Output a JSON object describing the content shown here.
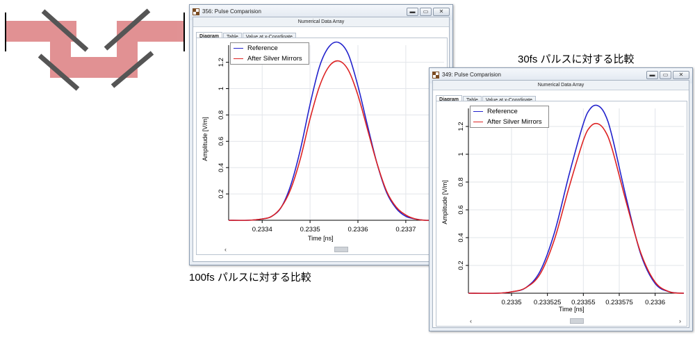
{
  "captions": {
    "left": "100fs パルスに対する比較",
    "right": "30fs パルスに対する比較"
  },
  "colors": {
    "reference": "#2222cc",
    "after": "#dd2222"
  },
  "windows": [
    {
      "title": "356: Pulse Comparision",
      "subtitle": "Numerical Data Array",
      "tabs": [
        "Diagram",
        "Table",
        "Value at x-Coordinate"
      ],
      "active_tab": "Diagram"
    },
    {
      "title": "349: Pulse Comparision",
      "subtitle": "Numerical Data Array",
      "tabs": [
        "Diagram",
        "Table",
        "Value at x-Coordinate"
      ],
      "active_tab": "Diagram"
    }
  ],
  "chart_data": [
    {
      "type": "line",
      "xlabel": "Time [ns]",
      "ylabel": "Amplitude [V/m]",
      "xlim": [
        0.23333,
        0.23378
      ],
      "ylim": [
        0,
        1.33
      ],
      "x_ticks": [
        0.2334,
        0.2335,
        0.2336,
        0.2337
      ],
      "x_tick_labels": [
        "0.2334",
        "0.2335",
        "0.2336",
        "0.2337"
      ],
      "y_ticks": [
        0.2,
        0.4,
        0.6,
        0.8,
        1,
        1.2
      ],
      "y_tick_labels": [
        "0.2",
        "0.4",
        "0.6",
        "0.8",
        "1",
        "1.2"
      ],
      "grid": true,
      "legend_position": "top-left",
      "series": [
        {
          "name": "Reference",
          "x": [
            0.23333,
            0.23337,
            0.2334,
            0.23342,
            0.23344,
            0.23346,
            0.23348,
            0.2335,
            0.23352,
            0.23354,
            0.23356,
            0.23358,
            0.2336,
            0.23362,
            0.23364,
            0.23366,
            0.23368,
            0.2337,
            0.23372,
            0.23374,
            0.23376,
            0.23378
          ],
          "y": [
            0,
            0,
            0.01,
            0.03,
            0.1,
            0.27,
            0.54,
            0.88,
            1.17,
            1.32,
            1.35,
            1.26,
            1.02,
            0.72,
            0.43,
            0.21,
            0.09,
            0.03,
            0.01,
            0,
            0,
            0
          ]
        },
        {
          "name": "After Silver Mirrors",
          "x": [
            0.23333,
            0.23337,
            0.2334,
            0.23342,
            0.23344,
            0.23346,
            0.23348,
            0.2335,
            0.23352,
            0.23354,
            0.23356,
            0.23358,
            0.2336,
            0.23362,
            0.23364,
            0.23366,
            0.23368,
            0.2337,
            0.23372,
            0.23374,
            0.23376,
            0.23378
          ],
          "y": [
            0,
            0,
            0.01,
            0.03,
            0.1,
            0.24,
            0.47,
            0.77,
            1.02,
            1.17,
            1.21,
            1.14,
            0.95,
            0.69,
            0.43,
            0.22,
            0.1,
            0.04,
            0.01,
            0,
            0,
            0
          ]
        }
      ]
    },
    {
      "type": "line",
      "xlabel": "Time [ns]",
      "ylabel": "Amplitude [V/m]",
      "xlim": [
        0.23347,
        0.23362
      ],
      "ylim": [
        0,
        1.33
      ],
      "x_ticks": [
        0.2335,
        0.233525,
        0.23355,
        0.233575,
        0.2336
      ],
      "x_tick_labels": [
        "0.2335",
        "0.233525",
        "0.23355",
        "0.233575",
        "0.2336"
      ],
      "y_ticks": [
        0.2,
        0.4,
        0.6,
        0.8,
        1,
        1.2
      ],
      "y_tick_labels": [
        "0.2",
        "0.4",
        "0.6",
        "0.8",
        "1",
        "1.2"
      ],
      "grid": true,
      "legend_position": "top-left",
      "series": [
        {
          "name": "Reference",
          "x": [
            0.23347,
            0.23349,
            0.2335,
            0.23351,
            0.23352,
            0.23353,
            0.23354,
            0.23355,
            0.233555,
            0.23356,
            0.233565,
            0.23357,
            0.23358,
            0.23359,
            0.2336,
            0.23361,
            0.23362
          ],
          "y": [
            0,
            0,
            0.01,
            0.04,
            0.16,
            0.44,
            0.85,
            1.22,
            1.33,
            1.35,
            1.29,
            1.13,
            0.68,
            0.28,
            0.07,
            0.01,
            0
          ]
        },
        {
          "name": "After Silver Mirrors",
          "x": [
            0.23347,
            0.23349,
            0.2335,
            0.23351,
            0.23352,
            0.23353,
            0.23354,
            0.23355,
            0.233555,
            0.23356,
            0.233565,
            0.23357,
            0.23358,
            0.23359,
            0.2336,
            0.23361,
            0.23362
          ],
          "y": [
            0,
            0,
            0.01,
            0.04,
            0.14,
            0.39,
            0.76,
            1.1,
            1.2,
            1.22,
            1.17,
            1.04,
            0.65,
            0.29,
            0.08,
            0.01,
            0
          ]
        }
      ]
    }
  ]
}
